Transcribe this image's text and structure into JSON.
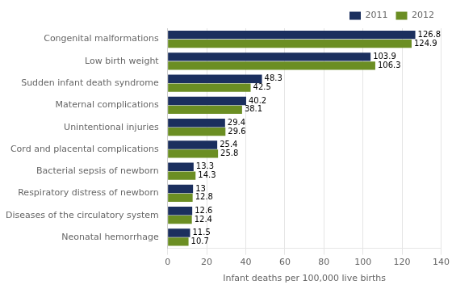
{
  "chart_data": {
    "type": "bar",
    "orientation": "horizontal",
    "categories": [
      "Neonatal hemorrhage",
      "Diseases of the circulatory system",
      "Respiratory distress of newborn",
      "Bacterial sepsis of newborn",
      "Cord and placental complications",
      "Unintentional injuries",
      "Maternal complications",
      "Sudden infant death syndrome",
      "Low birth weight",
      "Congenital malformations"
    ],
    "series": [
      {
        "name": "2011",
        "color": "#1b2f5e",
        "values": [
          11.5,
          12.6,
          13.0,
          13.3,
          25.4,
          29.4,
          40.2,
          48.3,
          103.9,
          126.8
        ]
      },
      {
        "name": "2012",
        "color": "#6b8e23",
        "values": [
          10.7,
          12.4,
          12.8,
          14.3,
          25.8,
          29.6,
          38.1,
          42.5,
          106.3,
          124.9
        ]
      }
    ],
    "xlabel": "Infant deaths per 100,000 live births",
    "xlim": [
      0,
      140
    ],
    "xticks": [
      0,
      20,
      40,
      60,
      80,
      100,
      120,
      140
    ],
    "grid": true,
    "legend": "upper right",
    "data_labels": true
  }
}
